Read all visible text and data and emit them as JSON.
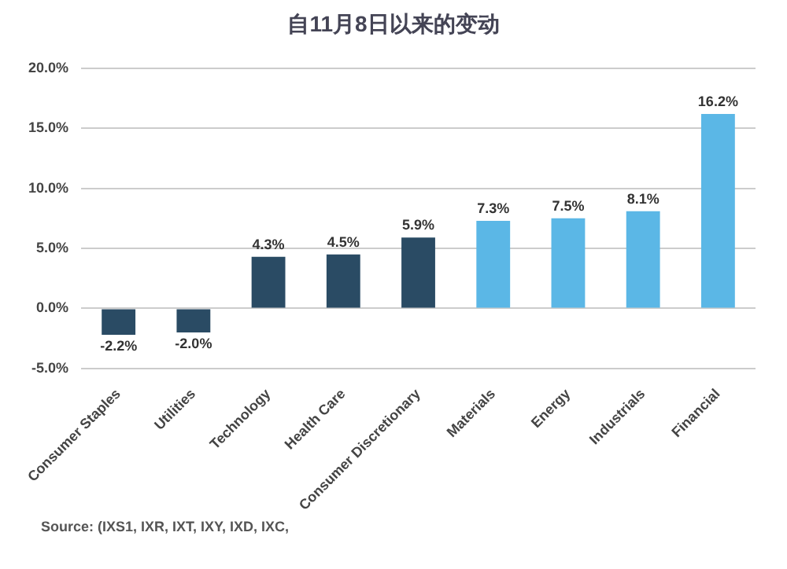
{
  "chart_data": {
    "type": "bar",
    "title": "自11月8日以来的变动",
    "categories": [
      "Consumer Staples",
      "Utilities",
      "Technology",
      "Health Care",
      "Consumer Discretionary",
      "Materials",
      "Energy",
      "Industrials",
      "Financial"
    ],
    "values": [
      -2.2,
      -2.0,
      4.3,
      4.5,
      5.9,
      7.3,
      7.5,
      8.1,
      16.2
    ],
    "colors": [
      "#2a4b64",
      "#2a4b64",
      "#2a4b64",
      "#2a4b64",
      "#2a4b64",
      "#5bb7e6",
      "#5bb7e6",
      "#5bb7e6",
      "#5bb7e6"
    ],
    "value_labels": [
      "-2.2%",
      "-2.0%",
      "4.3%",
      "4.5%",
      "5.9%",
      "7.3%",
      "7.5%",
      "8.1%",
      "16.2%"
    ],
    "ylim": [
      -5,
      20
    ],
    "yticks": [
      {
        "value": -5,
        "label": "-5.0%"
      },
      {
        "value": 0,
        "label": "0.0%"
      },
      {
        "value": 5,
        "label": "5.0%"
      },
      {
        "value": 10,
        "label": "10.0%"
      },
      {
        "value": 15,
        "label": "15.0%"
      },
      {
        "value": 20,
        "label": "20.0%"
      }
    ],
    "grid": "y",
    "annotations": [
      "Source: (IXS1, IXR, IXT, IXY, IXD, IXC,"
    ]
  }
}
